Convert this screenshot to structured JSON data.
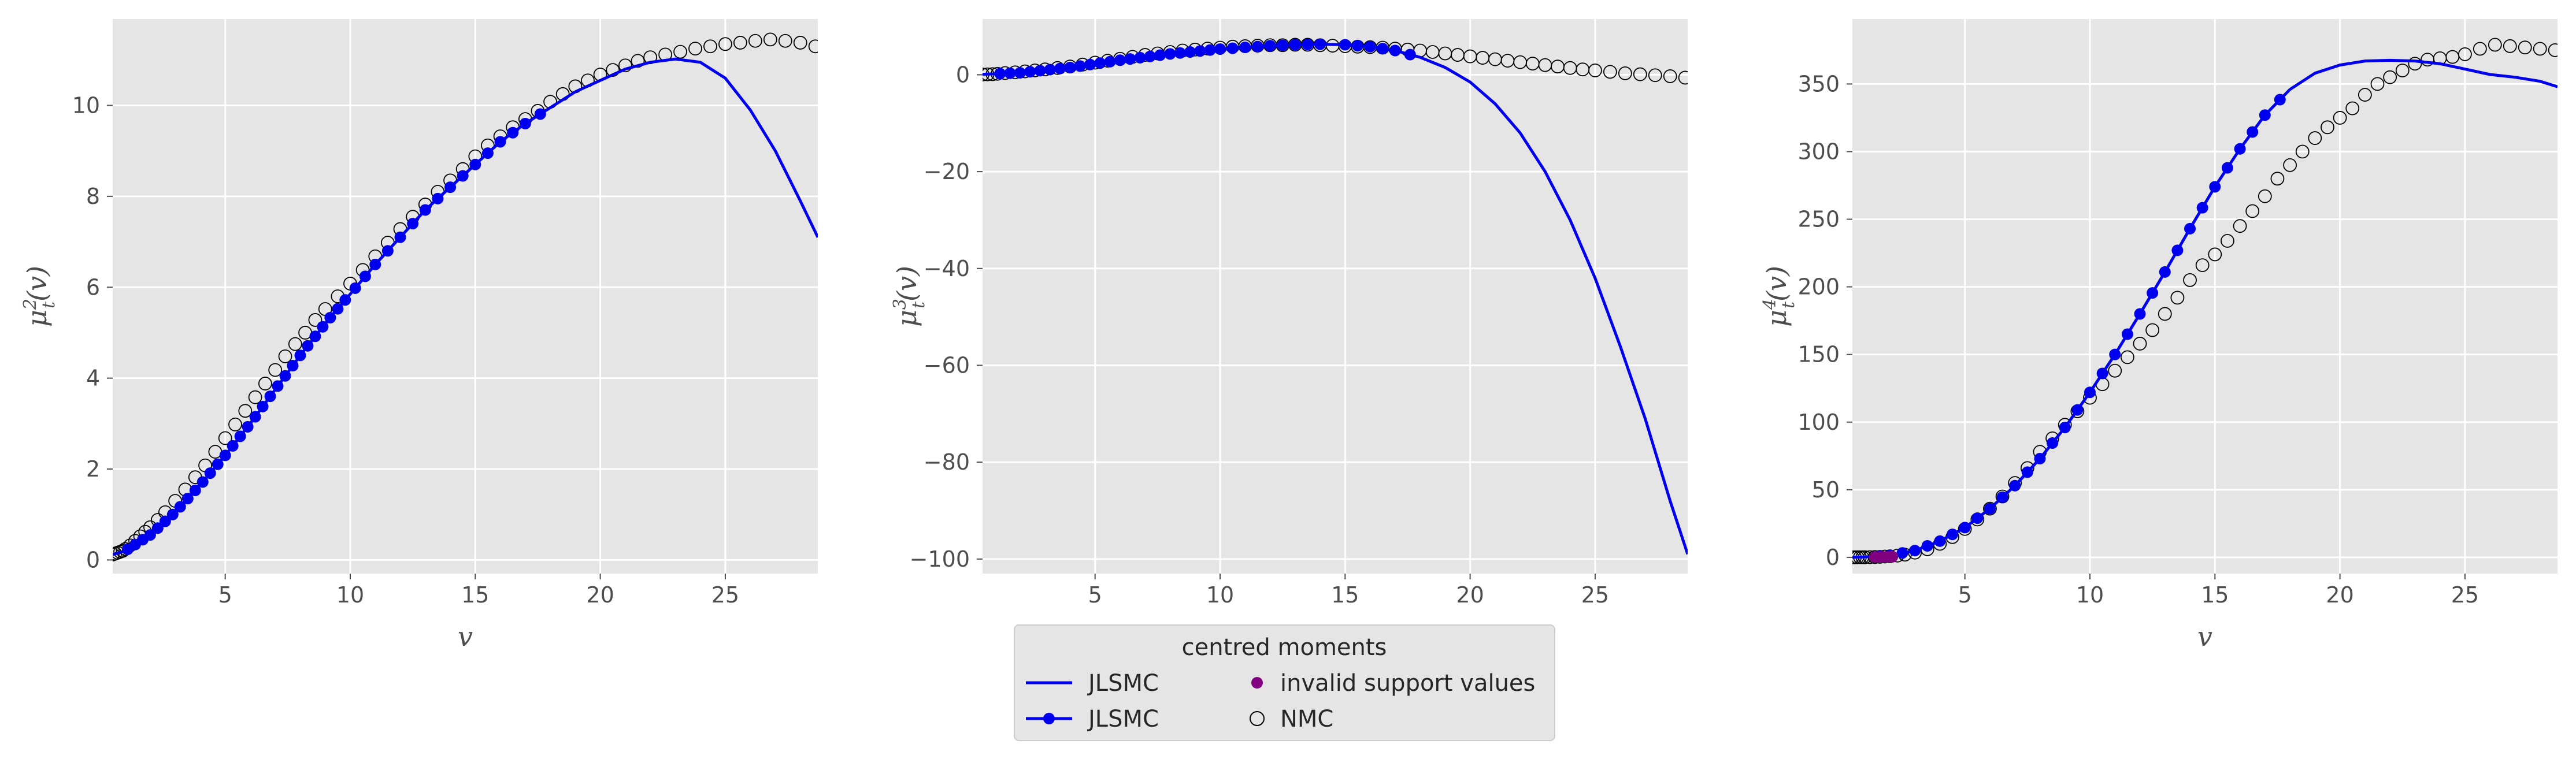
{
  "chart_data": [
    {
      "type": "line",
      "ylabel_base": "μ",
      "ylabel_sup": "2",
      "ylabel_sub": "t",
      "ylabel_arg": "(v)",
      "xlabel": "v",
      "xlim": [
        0.5,
        28.7
      ],
      "ylim": [
        -0.3,
        11.9
      ],
      "xticks": [
        5,
        10,
        15,
        20,
        25
      ],
      "yticks": [
        0,
        2,
        4,
        6,
        8,
        10
      ],
      "line_curve": [
        [
          0.5,
          0.12
        ],
        [
          1,
          0.2
        ],
        [
          2,
          0.55
        ],
        [
          3,
          1.05
        ],
        [
          4,
          1.65
        ],
        [
          5,
          2.3
        ],
        [
          6,
          3.0
        ],
        [
          7,
          3.75
        ],
        [
          8,
          4.5
        ],
        [
          9,
          5.2
        ],
        [
          10,
          5.85
        ],
        [
          11,
          6.5
        ],
        [
          12,
          7.1
        ],
        [
          13,
          7.7
        ],
        [
          14,
          8.2
        ],
        [
          15,
          8.7
        ],
        [
          16,
          9.2
        ],
        [
          17,
          9.6
        ],
        [
          18,
          9.95
        ],
        [
          19,
          10.3
        ],
        [
          20,
          10.55
        ],
        [
          21,
          10.8
        ],
        [
          22,
          10.95
        ],
        [
          23,
          11.02
        ],
        [
          24,
          10.95
        ],
        [
          25,
          10.6
        ],
        [
          26,
          9.9
        ],
        [
          27,
          9.0
        ],
        [
          28,
          7.9
        ],
        [
          28.7,
          7.1
        ]
      ],
      "marker_x": [
        1.1,
        1.4,
        1.7,
        2.0,
        2.3,
        2.6,
        2.9,
        3.2,
        3.5,
        3.8,
        4.1,
        4.4,
        4.7,
        5.0,
        5.3,
        5.6,
        5.9,
        6.2,
        6.5,
        6.8,
        7.1,
        7.4,
        7.7,
        8.0,
        8.3,
        8.6,
        8.9,
        9.2,
        9.5,
        9.8,
        10.2,
        10.6,
        11.0,
        11.5,
        12.0,
        12.5,
        13.0,
        13.5,
        14.0,
        14.5,
        15.0,
        15.5,
        16.0,
        16.5,
        17.0,
        17.6
      ],
      "nmc_points": [
        [
          0.5,
          0.12
        ],
        [
          0.6,
          0.14
        ],
        [
          0.7,
          0.16
        ],
        [
          0.8,
          0.18
        ],
        [
          0.9,
          0.2
        ],
        [
          1.0,
          0.24
        ],
        [
          1.2,
          0.32
        ],
        [
          1.4,
          0.42
        ],
        [
          1.6,
          0.52
        ],
        [
          1.8,
          0.62
        ],
        [
          2.0,
          0.72
        ],
        [
          2.3,
          0.88
        ],
        [
          2.6,
          1.05
        ],
        [
          3.0,
          1.3
        ],
        [
          3.4,
          1.55
        ],
        [
          3.8,
          1.82
        ],
        [
          4.2,
          2.08
        ],
        [
          4.6,
          2.38
        ],
        [
          5.0,
          2.68
        ],
        [
          5.4,
          2.98
        ],
        [
          5.8,
          3.28
        ],
        [
          6.2,
          3.58
        ],
        [
          6.6,
          3.88
        ],
        [
          7.0,
          4.18
        ],
        [
          7.4,
          4.48
        ],
        [
          7.8,
          4.75
        ],
        [
          8.2,
          5.0
        ],
        [
          8.6,
          5.28
        ],
        [
          9.0,
          5.52
        ],
        [
          9.5,
          5.8
        ],
        [
          10.0,
          6.08
        ],
        [
          10.5,
          6.38
        ],
        [
          11.0,
          6.68
        ],
        [
          11.5,
          6.98
        ],
        [
          12.0,
          7.28
        ],
        [
          12.5,
          7.55
        ],
        [
          13.0,
          7.82
        ],
        [
          13.5,
          8.1
        ],
        [
          14.0,
          8.35
        ],
        [
          14.5,
          8.6
        ],
        [
          15.0,
          8.88
        ],
        [
          15.5,
          9.12
        ],
        [
          16.0,
          9.32
        ],
        [
          16.5,
          9.52
        ],
        [
          17.0,
          9.7
        ],
        [
          17.5,
          9.88
        ],
        [
          18.0,
          10.08
        ],
        [
          18.5,
          10.25
        ],
        [
          19.0,
          10.42
        ],
        [
          19.5,
          10.55
        ],
        [
          20.0,
          10.68
        ],
        [
          20.5,
          10.78
        ],
        [
          21.0,
          10.88
        ],
        [
          21.5,
          10.98
        ],
        [
          22.0,
          11.06
        ],
        [
          22.6,
          11.12
        ],
        [
          23.2,
          11.18
        ],
        [
          23.8,
          11.25
        ],
        [
          24.4,
          11.3
        ],
        [
          25.0,
          11.35
        ],
        [
          25.6,
          11.38
        ],
        [
          26.2,
          11.42
        ],
        [
          26.8,
          11.45
        ],
        [
          27.4,
          11.42
        ],
        [
          28.0,
          11.38
        ],
        [
          28.6,
          11.3
        ]
      ]
    },
    {
      "type": "line",
      "ylabel_base": "μ",
      "ylabel_sup": "3",
      "ylabel_sub": "t",
      "ylabel_arg": "(v)",
      "xlabel": "",
      "xlim": [
        0.5,
        28.7
      ],
      "ylim": [
        -103,
        11.5
      ],
      "xticks": [
        5,
        10,
        15,
        20,
        25
      ],
      "yticks": [
        0,
        -20,
        -40,
        -60,
        -80,
        -100
      ],
      "line_curve": [
        [
          0.5,
          0.1
        ],
        [
          2,
          0.4
        ],
        [
          4,
          1.5
        ],
        [
          6,
          3.0
        ],
        [
          8,
          4.3
        ],
        [
          10,
          5.3
        ],
        [
          12,
          6.0
        ],
        [
          13,
          6.2
        ],
        [
          14,
          6.3
        ],
        [
          15,
          6.2
        ],
        [
          16,
          5.8
        ],
        [
          17,
          5.0
        ],
        [
          18,
          3.6
        ],
        [
          19,
          1.5
        ],
        [
          20,
          -1.5
        ],
        [
          21,
          -6.0
        ],
        [
          22,
          -12
        ],
        [
          23,
          -20
        ],
        [
          24,
          -30
        ],
        [
          25,
          -42
        ],
        [
          26,
          -56
        ],
        [
          27,
          -71
        ],
        [
          28,
          -88
        ],
        [
          28.7,
          -99
        ]
      ],
      "marker_x": [
        1.2,
        1.6,
        2.0,
        2.4,
        2.8,
        3.2,
        3.6,
        4.0,
        4.4,
        4.8,
        5.2,
        5.6,
        6.0,
        6.4,
        6.8,
        7.2,
        7.6,
        8.0,
        8.4,
        8.8,
        9.2,
        9.6,
        10.0,
        10.5,
        11.0,
        11.5,
        12.0,
        12.5,
        13.0,
        13.5,
        14.0,
        15.0,
        15.5,
        16.0,
        16.5,
        17.0,
        17.6
      ],
      "nmc_points": [
        [
          0.5,
          0.05
        ],
        [
          0.7,
          0.08
        ],
        [
          0.9,
          0.12
        ],
        [
          1.1,
          0.2
        ],
        [
          1.4,
          0.35
        ],
        [
          1.8,
          0.5
        ],
        [
          2.2,
          0.7
        ],
        [
          2.6,
          0.9
        ],
        [
          3.0,
          1.1
        ],
        [
          3.5,
          1.4
        ],
        [
          4.0,
          1.7
        ],
        [
          4.5,
          2.1
        ],
        [
          5.0,
          2.5
        ],
        [
          5.5,
          2.9
        ],
        [
          6.0,
          3.3
        ],
        [
          6.5,
          3.7
        ],
        [
          7.0,
          4.1
        ],
        [
          7.5,
          4.4
        ],
        [
          8.0,
          4.7
        ],
        [
          8.5,
          5.0
        ],
        [
          9.0,
          5.2
        ],
        [
          9.5,
          5.4
        ],
        [
          10.0,
          5.6
        ],
        [
          10.5,
          5.8
        ],
        [
          11.0,
          5.9
        ],
        [
          11.5,
          6.0
        ],
        [
          12.0,
          6.1
        ],
        [
          12.5,
          6.1
        ],
        [
          13.0,
          6.2
        ],
        [
          13.5,
          6.2
        ],
        [
          14.0,
          6.1
        ],
        [
          14.5,
          6.0
        ],
        [
          15.0,
          5.9
        ],
        [
          15.5,
          5.8
        ],
        [
          16.0,
          5.7
        ],
        [
          16.5,
          5.6
        ],
        [
          17.0,
          5.4
        ],
        [
          17.5,
          5.2
        ],
        [
          18.0,
          5.0
        ],
        [
          18.5,
          4.7
        ],
        [
          19.0,
          4.4
        ],
        [
          19.5,
          4.1
        ],
        [
          20.0,
          3.8
        ],
        [
          20.5,
          3.5
        ],
        [
          21.0,
          3.2
        ],
        [
          21.5,
          2.9
        ],
        [
          22.0,
          2.6
        ],
        [
          22.5,
          2.3
        ],
        [
          23.0,
          2.0
        ],
        [
          23.5,
          1.7
        ],
        [
          24.0,
          1.4
        ],
        [
          24.5,
          1.1
        ],
        [
          25.0,
          0.9
        ],
        [
          25.6,
          0.6
        ],
        [
          26.2,
          0.3
        ],
        [
          26.8,
          0.1
        ],
        [
          27.4,
          -0.1
        ],
        [
          28.0,
          -0.3
        ],
        [
          28.6,
          -0.6
        ]
      ]
    },
    {
      "type": "line",
      "ylabel_base": "μ",
      "ylabel_sup": "4",
      "ylabel_sub": "t",
      "ylabel_arg": "(v)",
      "xlabel": "v",
      "xlim": [
        0.5,
        28.7
      ],
      "ylim": [
        -12,
        398
      ],
      "xticks": [
        5,
        10,
        15,
        20,
        25
      ],
      "yticks": [
        0,
        50,
        100,
        150,
        200,
        250,
        300,
        350
      ],
      "line_curve": [
        [
          0.5,
          0.1
        ],
        [
          1,
          0.3
        ],
        [
          2,
          1.5
        ],
        [
          3,
          5
        ],
        [
          4,
          12
        ],
        [
          5,
          22
        ],
        [
          6,
          36
        ],
        [
          7,
          53
        ],
        [
          8,
          73
        ],
        [
          9,
          96
        ],
        [
          10,
          122
        ],
        [
          11,
          150
        ],
        [
          12,
          180
        ],
        [
          13,
          211
        ],
        [
          14,
          243
        ],
        [
          15,
          274
        ],
        [
          16,
          302
        ],
        [
          17,
          327
        ],
        [
          18,
          346
        ],
        [
          19,
          358
        ],
        [
          20,
          364
        ],
        [
          21,
          367
        ],
        [
          22,
          367.5
        ],
        [
          23,
          367
        ],
        [
          24,
          365
        ],
        [
          25,
          361
        ],
        [
          26,
          357
        ],
        [
          27,
          355
        ],
        [
          28,
          352
        ],
        [
          28.7,
          348
        ]
      ],
      "marker_x": [
        1.6,
        2.0,
        2.5,
        3.0,
        3.5,
        4.0,
        4.5,
        5.0,
        5.5,
        6.0,
        6.5,
        7.0,
        7.5,
        8.0,
        8.5,
        9.0,
        9.5,
        10.0,
        10.5,
        11.0,
        11.5,
        12.0,
        12.5,
        13.0,
        13.5,
        14.0,
        14.5,
        15.0,
        15.5,
        16.0,
        16.5,
        17.0,
        17.6
      ],
      "invalid_points": [
        [
          1.4,
          0.2
        ],
        [
          1.55,
          0.25
        ],
        [
          1.7,
          0.3
        ],
        [
          1.85,
          0.35
        ],
        [
          2.0,
          0.4
        ],
        [
          2.1,
          0.45
        ]
      ],
      "nmc_points": [
        [
          0.5,
          0.02
        ],
        [
          0.6,
          0.03
        ],
        [
          0.7,
          0.04
        ],
        [
          0.8,
          0.05
        ],
        [
          0.9,
          0.06
        ],
        [
          1.0,
          0.1
        ],
        [
          1.2,
          0.15
        ],
        [
          1.4,
          0.25
        ],
        [
          1.6,
          0.4
        ],
        [
          1.8,
          0.6
        ],
        [
          2.0,
          0.8
        ],
        [
          2.3,
          1.3
        ],
        [
          2.6,
          2
        ],
        [
          3.0,
          3.5
        ],
        [
          3.5,
          6
        ],
        [
          4.0,
          10
        ],
        [
          4.5,
          15
        ],
        [
          5.0,
          21
        ],
        [
          5.5,
          28
        ],
        [
          6.0,
          36
        ],
        [
          6.5,
          45
        ],
        [
          7.0,
          55
        ],
        [
          7.5,
          66
        ],
        [
          8.0,
          78
        ],
        [
          8.5,
          88
        ],
        [
          9.0,
          98
        ],
        [
          9.5,
          108
        ],
        [
          10.0,
          118
        ],
        [
          10.5,
          128
        ],
        [
          11.0,
          138
        ],
        [
          11.5,
          148
        ],
        [
          12.0,
          158
        ],
        [
          12.5,
          168
        ],
        [
          13.0,
          180
        ],
        [
          13.5,
          192
        ],
        [
          14.0,
          205
        ],
        [
          14.5,
          216
        ],
        [
          15.0,
          224
        ],
        [
          15.5,
          234
        ],
        [
          16.0,
          245
        ],
        [
          16.5,
          256
        ],
        [
          17.0,
          267
        ],
        [
          17.5,
          280
        ],
        [
          18.0,
          290
        ],
        [
          18.5,
          300
        ],
        [
          19.0,
          310
        ],
        [
          19.5,
          318
        ],
        [
          20.0,
          325
        ],
        [
          20.5,
          332
        ],
        [
          21.0,
          342
        ],
        [
          21.5,
          350
        ],
        [
          22.0,
          355
        ],
        [
          22.5,
          360
        ],
        [
          23.0,
          365
        ],
        [
          23.5,
          368
        ],
        [
          24.0,
          369
        ],
        [
          24.5,
          370
        ],
        [
          25.0,
          372
        ],
        [
          25.6,
          376
        ],
        [
          26.2,
          379
        ],
        [
          26.8,
          378
        ],
        [
          27.4,
          377
        ],
        [
          28.0,
          376
        ],
        [
          28.6,
          375
        ]
      ]
    }
  ],
  "legend": {
    "title": "centred moments",
    "entries": [
      {
        "label": "JLSMC",
        "kind": "line",
        "color": "#0000ee"
      },
      {
        "label": "invalid support values",
        "kind": "dot",
        "color": "#800080"
      },
      {
        "label": "JLSMC",
        "kind": "line-marker",
        "color": "#0000ee"
      },
      {
        "label": "NMC",
        "kind": "open-circle",
        "color": "#000000"
      }
    ]
  },
  "colors": {
    "panel_bg": "#e5e5e5",
    "grid": "#ffffff",
    "line": "#0000ee",
    "invalid": "#800080",
    "nmc": "#000000",
    "text": "#4d4d4d"
  }
}
